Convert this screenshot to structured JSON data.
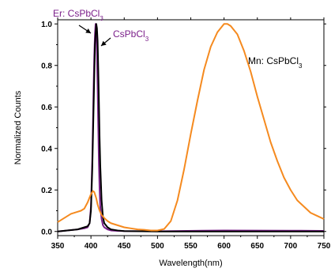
{
  "chart_data": {
    "type": "line",
    "xlabel": "Wavelength(nm)",
    "ylabel": "Normalized Counts",
    "xlim": [
      350,
      750
    ],
    "ylim": [
      -0.02,
      1.02
    ],
    "x_ticks": [
      350,
      400,
      450,
      500,
      550,
      600,
      650,
      700,
      750
    ],
    "y_ticks": [
      0.0,
      0.2,
      0.4,
      0.6,
      0.8,
      1.0
    ],
    "y_tick_labels": [
      "0.0",
      "0.2",
      "0.4",
      "0.6",
      "0.8",
      "1.0"
    ],
    "grid": false,
    "series": [
      {
        "name": "Er: CsPbCl3",
        "color": "#7b1f8a",
        "x": [
          350,
          380,
          390,
          395,
          398,
          400,
          402,
          404,
          405,
          406,
          407,
          408,
          409,
          410,
          411,
          412,
          413,
          414,
          416,
          418,
          420,
          425,
          430,
          440,
          450,
          500,
          600,
          700,
          750
        ],
        "y": [
          0.0,
          0.01,
          0.015,
          0.02,
          0.04,
          0.12,
          0.35,
          0.7,
          0.85,
          0.95,
          1.0,
          0.97,
          0.85,
          0.7,
          0.5,
          0.32,
          0.2,
          0.12,
          0.06,
          0.03,
          0.02,
          0.01,
          0.005,
          0.003,
          0.002,
          0.001,
          0.005,
          0.004,
          0.003
        ]
      },
      {
        "name": "CsPbCl3",
        "color": "#000000",
        "x": [
          350,
          380,
          390,
          395,
          398,
          400,
          402,
          404,
          406,
          408,
          409,
          410,
          411,
          412,
          413,
          414,
          416,
          418,
          420,
          425,
          430,
          440,
          450,
          500,
          600,
          700,
          750
        ],
        "y": [
          0.0,
          0.01,
          0.02,
          0.025,
          0.04,
          0.1,
          0.3,
          0.6,
          0.9,
          1.0,
          0.98,
          0.92,
          0.78,
          0.62,
          0.45,
          0.32,
          0.15,
          0.07,
          0.04,
          0.02,
          0.01,
          0.005,
          0.002,
          0.0,
          0.0,
          0.0,
          0.0
        ]
      },
      {
        "name": "Mn: CsPbCl3",
        "color": "#f58a1f",
        "x": [
          350,
          360,
          370,
          380,
          385,
          390,
          395,
          400,
          403,
          405,
          408,
          410,
          413,
          416,
          420,
          425,
          430,
          440,
          450,
          460,
          470,
          480,
          490,
          500,
          510,
          520,
          530,
          540,
          550,
          560,
          570,
          580,
          590,
          600,
          605,
          610,
          620,
          630,
          640,
          650,
          660,
          670,
          680,
          690,
          700,
          710,
          720,
          730,
          740,
          750
        ],
        "y": [
          0.045,
          0.065,
          0.085,
          0.095,
          0.1,
          0.11,
          0.14,
          0.18,
          0.195,
          0.19,
          0.16,
          0.13,
          0.1,
          0.08,
          0.065,
          0.05,
          0.04,
          0.03,
          0.02,
          0.015,
          0.01,
          0.008,
          0.005,
          0.005,
          0.012,
          0.05,
          0.15,
          0.3,
          0.47,
          0.63,
          0.78,
          0.89,
          0.96,
          1.0,
          1.0,
          0.99,
          0.95,
          0.87,
          0.77,
          0.65,
          0.54,
          0.43,
          0.34,
          0.26,
          0.2,
          0.15,
          0.12,
          0.09,
          0.075,
          0.06
        ]
      }
    ],
    "annotations": {
      "er": {
        "base": "Er: CsPbCl",
        "sub": "3",
        "color": "#7b1f8a"
      },
      "cs": {
        "base": "CsPbCl",
        "sub": "3",
        "color": "#7b1f8a"
      },
      "mn": {
        "base": "Mn: CsPbCl",
        "sub": "3",
        "color": "#000000"
      }
    }
  }
}
